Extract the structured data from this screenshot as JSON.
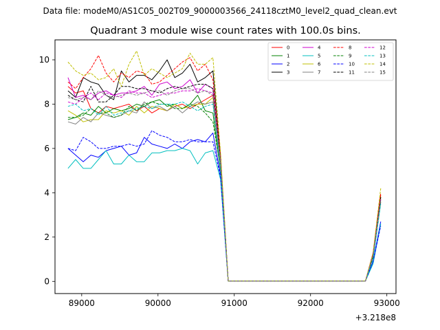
{
  "figure": {
    "suptitle": "Data file: modeM0/AS1C05_002T09_9000003566_24118cztM0_level2_quad_clean.evt"
  },
  "chart_data": {
    "type": "line",
    "title": "Quadrant 3 module wise count rates with 100.0s bins.",
    "xlabel": "",
    "ylabel": "",
    "x_offset_label": "+3.218e8",
    "xlim": [
      88650,
      93120
    ],
    "ylim": [
      -0.55,
      10.9
    ],
    "xticks": [
      89000,
      90000,
      91000,
      92000,
      93000
    ],
    "xtick_labels": [
      "89000",
      "90000",
      "91000",
      "92000",
      "93000"
    ],
    "yticks": [
      0,
      2,
      4,
      6,
      8,
      10
    ],
    "ytick_labels": [
      "0",
      "2",
      "4",
      "6",
      "8",
      "10"
    ],
    "grid": false,
    "legend_position": "top-right",
    "x": [
      88820,
      88920,
      89020,
      89120,
      89220,
      89320,
      89420,
      89520,
      89620,
      89720,
      89820,
      89920,
      90020,
      90120,
      90220,
      90320,
      90420,
      90520,
      90620,
      90720,
      90820,
      90920,
      91020,
      91120,
      91220,
      91320,
      91420,
      91520,
      91620,
      91720,
      91820,
      91920,
      92020,
      92120,
      92220,
      92320,
      92420,
      92520,
      92620,
      92720,
      92820,
      92920
    ],
    "series": [
      {
        "name": "0",
        "color": "#ff0000",
        "dash": "solid",
        "values": [
          8.8,
          8.5,
          8.6,
          7.8,
          7.6,
          7.9,
          7.8,
          7.9,
          8.0,
          7.7,
          7.9,
          7.6,
          7.8,
          7.7,
          7.9,
          8.0,
          7.8,
          8.0,
          8.2,
          8.4,
          5.3,
          0.02,
          0.02,
          0.02,
          0.02,
          0.02,
          0.02,
          0.02,
          0.02,
          0.02,
          0.02,
          0.02,
          0.02,
          0.02,
          0.02,
          0.02,
          0.02,
          0.02,
          0.02,
          0.02,
          1.2,
          3.9
        ]
      },
      {
        "name": "1",
        "color": "#008000",
        "dash": "solid",
        "values": [
          7.3,
          7.4,
          7.6,
          7.5,
          7.9,
          7.6,
          7.8,
          7.7,
          7.8,
          8.0,
          7.9,
          8.1,
          8.2,
          7.9,
          8.0,
          7.8,
          8.0,
          8.4,
          7.7,
          7.6,
          5.0,
          0.02,
          0.02,
          0.02,
          0.02,
          0.02,
          0.02,
          0.02,
          0.02,
          0.02,
          0.02,
          0.02,
          0.02,
          0.02,
          0.02,
          0.02,
          0.02,
          0.02,
          0.02,
          0.02,
          1.1,
          3.6
        ]
      },
      {
        "name": "2",
        "color": "#0000ff",
        "dash": "solid",
        "values": [
          6.0,
          5.7,
          5.4,
          5.7,
          5.6,
          5.9,
          6.0,
          6.1,
          5.7,
          5.8,
          6.5,
          6.2,
          6.1,
          6.0,
          6.2,
          6.0,
          6.3,
          6.4,
          6.3,
          6.7,
          4.8,
          0.02,
          0.02,
          0.02,
          0.02,
          0.02,
          0.02,
          0.02,
          0.02,
          0.02,
          0.02,
          0.02,
          0.02,
          0.02,
          0.02,
          0.02,
          0.02,
          0.02,
          0.02,
          0.02,
          0.9,
          2.7
        ]
      },
      {
        "name": "3",
        "color": "#000000",
        "dash": "solid",
        "values": [
          8.6,
          8.3,
          9.2,
          9.0,
          8.9,
          8.4,
          8.2,
          9.5,
          9.0,
          9.3,
          9.3,
          9.1,
          9.5,
          10.0,
          9.2,
          9.4,
          9.8,
          9.0,
          9.2,
          9.5,
          5.6,
          0.02,
          0.02,
          0.02,
          0.02,
          0.02,
          0.02,
          0.02,
          0.02,
          0.02,
          0.02,
          0.02,
          0.02,
          0.02,
          0.02,
          0.02,
          0.02,
          0.02,
          0.02,
          0.02,
          1.2,
          3.8
        ]
      },
      {
        "name": "4",
        "color": "#cc00cc",
        "dash": "solid",
        "values": [
          9.2,
          8.3,
          8.4,
          8.2,
          8.5,
          8.6,
          8.4,
          8.5,
          8.5,
          8.6,
          8.8,
          8.4,
          8.9,
          9.0,
          8.7,
          8.8,
          9.1,
          8.5,
          8.9,
          8.7,
          5.4,
          0.02,
          0.02,
          0.02,
          0.02,
          0.02,
          0.02,
          0.02,
          0.02,
          0.02,
          0.02,
          0.02,
          0.02,
          0.02,
          0.02,
          0.02,
          0.02,
          0.02,
          0.02,
          0.02,
          1.1,
          3.7
        ]
      },
      {
        "name": "5",
        "color": "#00bfbf",
        "dash": "solid",
        "values": [
          5.1,
          5.5,
          5.1,
          5.1,
          5.5,
          5.9,
          5.3,
          5.3,
          5.7,
          5.4,
          5.4,
          5.8,
          5.8,
          5.9,
          5.9,
          6.0,
          5.9,
          5.3,
          5.8,
          5.9,
          4.6,
          0.02,
          0.02,
          0.02,
          0.02,
          0.02,
          0.02,
          0.02,
          0.02,
          0.02,
          0.02,
          0.02,
          0.02,
          0.02,
          0.02,
          0.02,
          0.02,
          0.02,
          0.02,
          0.02,
          0.8,
          2.6
        ]
      },
      {
        "name": "6",
        "color": "#bfbf00",
        "dash": "solid",
        "values": [
          7.7,
          7.5,
          7.2,
          7.3,
          7.3,
          7.7,
          7.6,
          7.7,
          7.5,
          7.9,
          7.6,
          7.9,
          7.8,
          7.7,
          8.0,
          7.8,
          7.9,
          8.0,
          8.0,
          8.3,
          5.2,
          0.02,
          0.02,
          0.02,
          0.02,
          0.02,
          0.02,
          0.02,
          0.02,
          0.02,
          0.02,
          0.02,
          0.02,
          0.02,
          0.02,
          0.02,
          0.02,
          0.02,
          0.02,
          0.02,
          1.1,
          3.8
        ]
      },
      {
        "name": "7",
        "color": "#808080",
        "dash": "solid",
        "values": [
          7.2,
          7.1,
          7.4,
          7.2,
          7.6,
          7.5,
          7.4,
          7.5,
          7.7,
          7.6,
          8.1,
          7.8,
          7.9,
          7.7,
          7.9,
          7.6,
          7.9,
          8.1,
          8.0,
          8.1,
          5.2,
          0.02,
          0.02,
          0.02,
          0.02,
          0.02,
          0.02,
          0.02,
          0.02,
          0.02,
          0.02,
          0.02,
          0.02,
          0.02,
          0.02,
          0.02,
          0.02,
          0.02,
          0.02,
          0.02,
          1.1,
          3.7
        ]
      },
      {
        "name": "8",
        "color": "#ff0000",
        "dash": "dashed",
        "values": [
          9.0,
          8.7,
          9.2,
          9.6,
          10.2,
          9.4,
          9.0,
          9.4,
          9.2,
          9.5,
          9.4,
          8.9,
          9.0,
          9.3,
          9.6,
          9.9,
          10.1,
          9.5,
          9.8,
          9.1,
          5.7,
          0.02,
          0.02,
          0.02,
          0.02,
          0.02,
          0.02,
          0.02,
          0.02,
          0.02,
          0.02,
          0.02,
          0.02,
          0.02,
          0.02,
          0.02,
          0.02,
          0.02,
          0.02,
          0.02,
          1.3,
          4.0
        ]
      },
      {
        "name": "9",
        "color": "#008000",
        "dash": "dashed",
        "values": [
          7.4,
          7.4,
          7.5,
          7.8,
          7.6,
          7.6,
          7.4,
          7.5,
          7.9,
          7.7,
          8.0,
          8.1,
          8.0,
          8.0,
          7.8,
          7.8,
          8.0,
          7.9,
          7.6,
          7.2,
          5.1,
          0.02,
          0.02,
          0.02,
          0.02,
          0.02,
          0.02,
          0.02,
          0.02,
          0.02,
          0.02,
          0.02,
          0.02,
          0.02,
          0.02,
          0.02,
          0.02,
          0.02,
          0.02,
          0.02,
          1.1,
          3.6
        ]
      },
      {
        "name": "10",
        "color": "#0000ff",
        "dash": "dashed",
        "values": [
          6.0,
          5.9,
          6.5,
          6.3,
          6.0,
          6.0,
          6.1,
          6.1,
          6.2,
          6.1,
          6.2,
          6.8,
          6.6,
          6.5,
          6.3,
          6.3,
          6.4,
          6.3,
          6.3,
          6.3,
          4.7,
          0.02,
          0.02,
          0.02,
          0.02,
          0.02,
          0.02,
          0.02,
          0.02,
          0.02,
          0.02,
          0.02,
          0.02,
          0.02,
          0.02,
          0.02,
          0.02,
          0.02,
          0.02,
          0.02,
          0.9,
          2.5
        ]
      },
      {
        "name": "11",
        "color": "#000000",
        "dash": "dashed",
        "values": [
          8.4,
          8.2,
          8.1,
          8.8,
          8.1,
          8.1,
          8.4,
          8.8,
          8.8,
          8.7,
          8.7,
          8.6,
          8.5,
          8.7,
          8.8,
          8.7,
          8.8,
          8.9,
          8.9,
          8.7,
          5.5,
          0.02,
          0.02,
          0.02,
          0.02,
          0.02,
          0.02,
          0.02,
          0.02,
          0.02,
          0.02,
          0.02,
          0.02,
          0.02,
          0.02,
          0.02,
          0.02,
          0.02,
          0.02,
          0.02,
          1.2,
          3.8
        ]
      },
      {
        "name": "12",
        "color": "#cc00cc",
        "dash": "dashed",
        "values": [
          8.1,
          8.0,
          8.3,
          8.5,
          8.2,
          8.5,
          8.4,
          8.3,
          8.6,
          8.5,
          8.5,
          8.3,
          8.4,
          8.5,
          8.5,
          8.6,
          8.6,
          8.7,
          8.6,
          8.5,
          5.4,
          0.02,
          0.02,
          0.02,
          0.02,
          0.02,
          0.02,
          0.02,
          0.02,
          0.02,
          0.02,
          0.02,
          0.02,
          0.02,
          0.02,
          0.02,
          0.02,
          0.02,
          0.02,
          0.02,
          1.2,
          3.7
        ]
      },
      {
        "name": "13",
        "color": "#00bfbf",
        "dash": "dashed",
        "values": [
          7.9,
          8.0,
          7.7,
          7.8,
          7.5,
          7.9,
          7.5,
          7.6,
          7.7,
          7.8,
          7.9,
          7.8,
          8.0,
          8.0,
          8.0,
          8.1,
          7.9,
          7.7,
          7.9,
          8.0,
          5.1,
          0.02,
          0.02,
          0.02,
          0.02,
          0.02,
          0.02,
          0.02,
          0.02,
          0.02,
          0.02,
          0.02,
          0.02,
          0.02,
          0.02,
          0.02,
          0.02,
          0.02,
          0.02,
          0.02,
          1.0,
          3.5
        ]
      },
      {
        "name": "14",
        "color": "#bfbf00",
        "dash": "dashed",
        "values": [
          9.9,
          9.5,
          9.3,
          9.4,
          9.1,
          9.2,
          9.6,
          8.8,
          9.8,
          10.4,
          9.3,
          9.6,
          9.4,
          9.2,
          9.4,
          9.6,
          10.3,
          9.8,
          9.8,
          10.1,
          5.8,
          0.02,
          0.02,
          0.02,
          0.02,
          0.02,
          0.02,
          0.02,
          0.02,
          0.02,
          0.02,
          0.02,
          0.02,
          0.02,
          0.02,
          0.02,
          0.02,
          0.02,
          0.02,
          0.02,
          1.3,
          4.2
        ]
      },
      {
        "name": "15",
        "color": "#808080",
        "dash": "dashed",
        "values": [
          8.3,
          8.2,
          8.3,
          8.2,
          8.6,
          8.4,
          8.3,
          8.4,
          8.5,
          8.4,
          8.5,
          8.6,
          8.6,
          8.4,
          8.6,
          8.7,
          8.7,
          8.5,
          8.6,
          8.4,
          5.4,
          0.02,
          0.02,
          0.02,
          0.02,
          0.02,
          0.02,
          0.02,
          0.02,
          0.02,
          0.02,
          0.02,
          0.02,
          0.02,
          0.02,
          0.02,
          0.02,
          0.02,
          0.02,
          0.02,
          1.2,
          3.7
        ]
      }
    ]
  }
}
